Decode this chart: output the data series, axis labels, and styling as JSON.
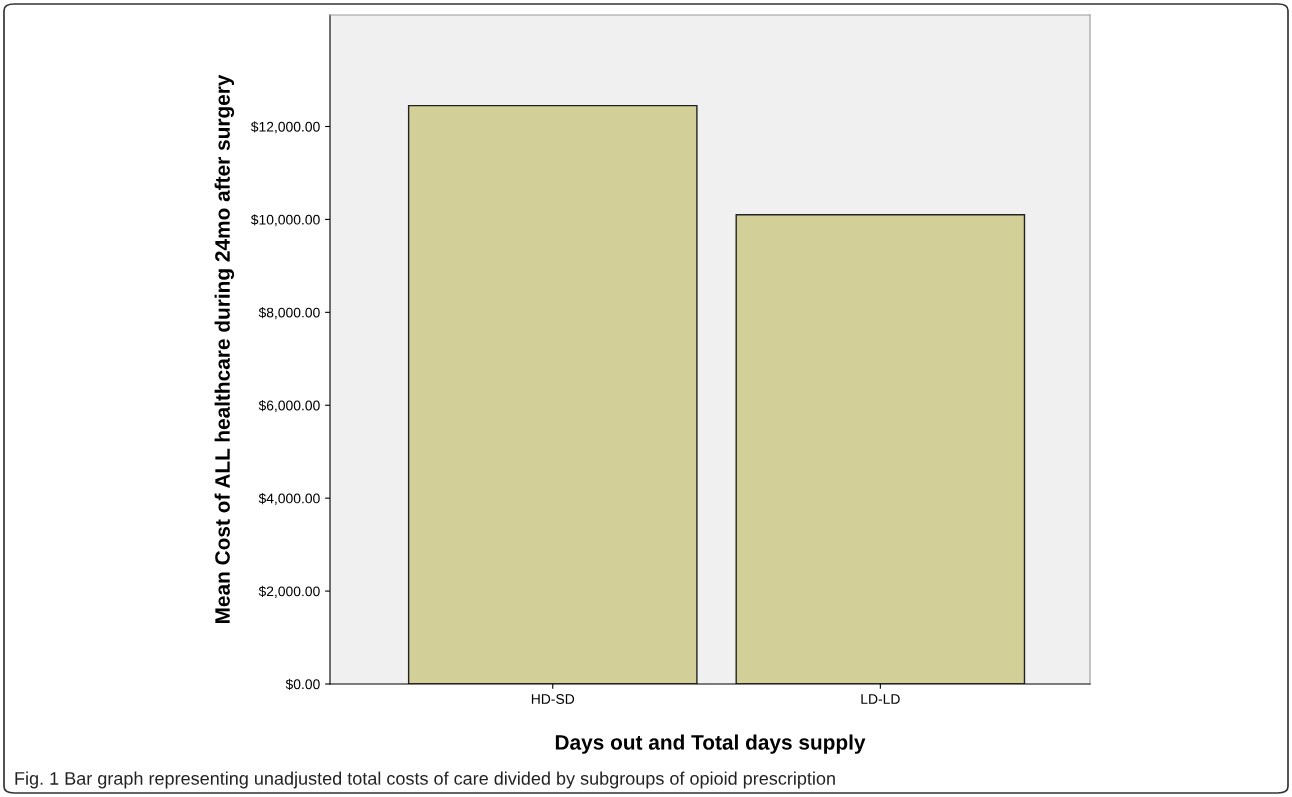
{
  "chart_data": {
    "type": "bar",
    "xlabel": "Days out and Total days supply",
    "ylabel": "Mean Cost of ALL healthcare during 24mo after surgery",
    "categories": [
      "HD-SD",
      "LD-LD"
    ],
    "values": [
      12450,
      10100
    ],
    "color": "#d3cf98",
    "ylim": [
      0,
      14400
    ],
    "yticks": [
      {
        "value": 0,
        "label": "$0.00"
      },
      {
        "value": 2000,
        "label": "$2,000.00"
      },
      {
        "value": 4000,
        "label": "$4,000.00"
      },
      {
        "value": 6000,
        "label": "$6,000.00"
      },
      {
        "value": 8000,
        "label": "$8,000.00"
      },
      {
        "value": 10000,
        "label": "$10,000.00"
      },
      {
        "value": 12000,
        "label": "$12,000.00"
      }
    ],
    "annotations": [
      "Fig. 1 Bar graph representing unadjusted total costs of care divided by subgroups of opioid prescription"
    ]
  }
}
